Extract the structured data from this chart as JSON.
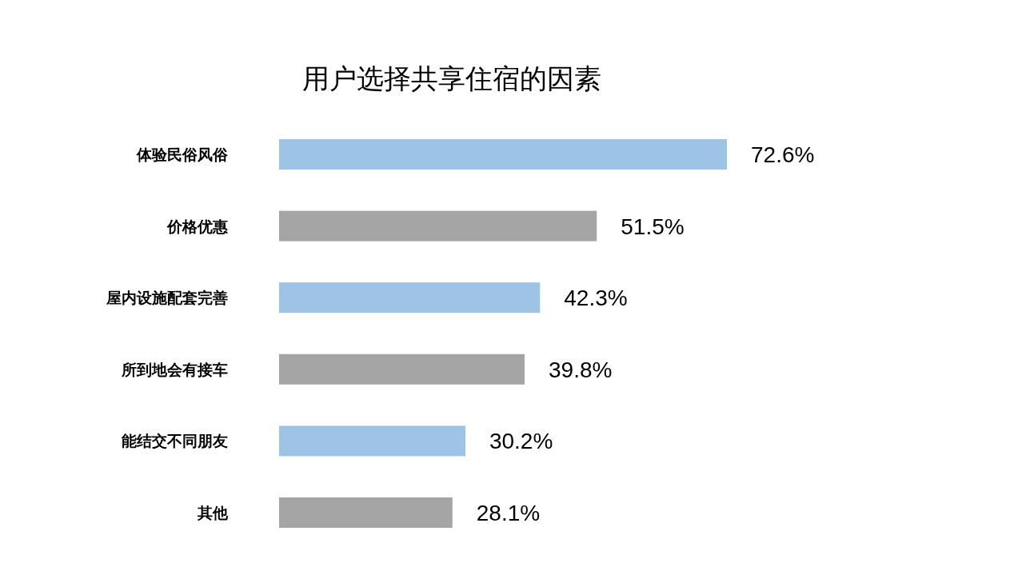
{
  "chart_data": {
    "type": "bar",
    "orientation": "horizontal",
    "title": "用户选择共享住宿的因素",
    "categories": [
      "体验民俗风俗",
      "价格优惠",
      "屋内设施配套完善",
      "所到地会有接车",
      "能结交不同朋友",
      "其他"
    ],
    "values": [
      72.6,
      51.5,
      42.3,
      39.8,
      30.2,
      28.1
    ],
    "colors": [
      "#9dc3e6",
      "#a5a5a5",
      "#9dc3e6",
      "#a5a5a5",
      "#9dc3e6",
      "#a5a5a5"
    ],
    "value_labels": [
      "72.6%",
      "51.5%",
      "42.3%",
      "39.8%",
      "30.2%",
      "28.1%"
    ]
  }
}
